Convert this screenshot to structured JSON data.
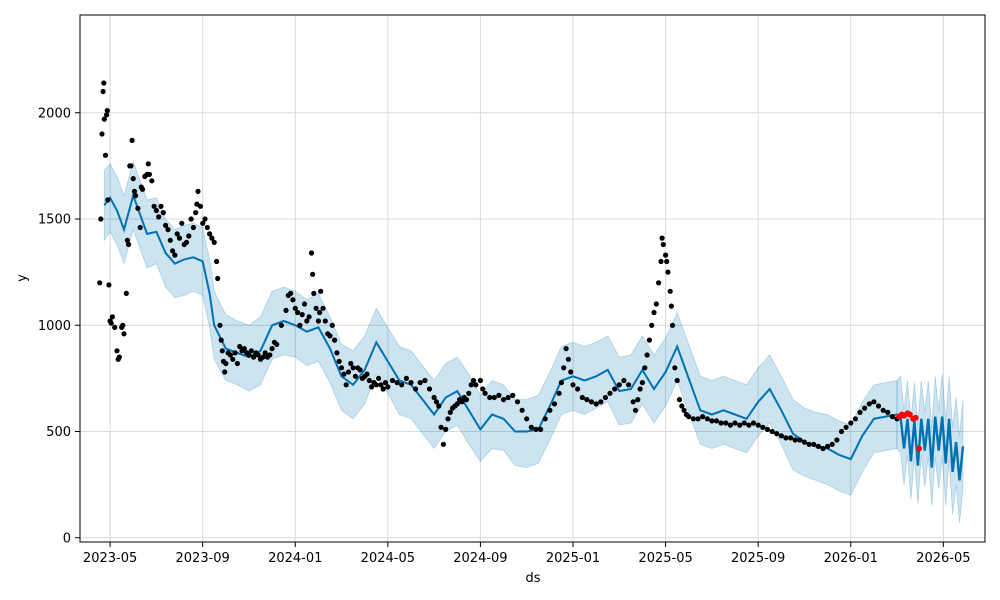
{
  "chart_data": {
    "type": "line",
    "title": "",
    "xlabel": "ds",
    "ylabel": "y",
    "grid": true,
    "x_range": [
      -1.3,
      37.8
    ],
    "y_range": [
      -20,
      2460
    ],
    "x_ticks": [
      {
        "m": 0,
        "label": "2023-05"
      },
      {
        "m": 4,
        "label": "2023-09"
      },
      {
        "m": 8,
        "label": "2024-01"
      },
      {
        "m": 12,
        "label": "2024-05"
      },
      {
        "m": 16,
        "label": "2024-09"
      },
      {
        "m": 20,
        "label": "2025-01"
      },
      {
        "m": 24,
        "label": "2025-05"
      },
      {
        "m": 28,
        "label": "2025-09"
      },
      {
        "m": 32,
        "label": "2026-01"
      },
      {
        "m": 36,
        "label": "2026-05"
      }
    ],
    "y_ticks": [
      {
        "v": 0,
        "label": "0"
      },
      {
        "v": 500,
        "label": "500"
      },
      {
        "v": 1000,
        "label": "1000"
      },
      {
        "v": 1500,
        "label": "1500"
      },
      {
        "v": 2000,
        "label": "2000"
      }
    ],
    "colors": {
      "forecast": "#0072B2",
      "band": "#0072B2",
      "observed": "#000000",
      "holdout": "#ff0000",
      "grid": "#d9d9d9"
    },
    "forecast": {
      "x": [
        -0.25,
        0.0,
        0.3,
        0.6,
        1.0,
        1.3,
        1.6,
        2.0,
        2.4,
        2.8,
        3.2,
        3.6,
        4.0,
        4.3,
        4.5,
        5.0,
        5.5,
        6.0,
        6.5,
        7.0,
        7.5,
        8.0,
        8.5,
        9.0,
        9.5,
        10.0,
        10.5,
        11.0,
        11.5,
        12.0,
        12.5,
        13.0,
        13.5,
        14.0,
        14.5,
        15.0,
        15.5,
        16.0,
        16.5,
        17.0,
        17.5,
        18.0,
        18.5,
        19.0,
        19.5,
        20.0,
        20.5,
        21.0,
        21.5,
        22.0,
        22.5,
        23.0,
        23.5,
        24.0,
        24.5,
        25.0,
        25.5,
        26.0,
        26.5,
        27.0,
        27.5,
        28.0,
        28.5,
        29.0,
        29.5,
        30.0,
        30.5,
        31.0,
        31.5,
        32.0,
        32.5,
        33.0,
        33.5,
        34.0
      ],
      "y": [
        1565,
        1600,
        1540,
        1450,
        1610,
        1520,
        1430,
        1440,
        1340,
        1290,
        1310,
        1320,
        1300,
        1150,
        1000,
        890,
        870,
        850,
        880,
        1000,
        1020,
        1000,
        970,
        990,
        890,
        760,
        720,
        790,
        920,
        830,
        740,
        720,
        650,
        580,
        660,
        690,
        600,
        510,
        580,
        560,
        500,
        500,
        510,
        620,
        740,
        760,
        740,
        760,
        790,
        690,
        700,
        790,
        700,
        780,
        900,
        750,
        600,
        580,
        600,
        580,
        560,
        640,
        700,
        600,
        490,
        450,
        430,
        420,
        390,
        370,
        480,
        560,
        570,
        580
      ],
      "lower": [
        1400,
        1440,
        1380,
        1290,
        1450,
        1360,
        1270,
        1290,
        1180,
        1130,
        1140,
        1160,
        1140,
        990,
        840,
        740,
        720,
        690,
        720,
        840,
        860,
        850,
        810,
        830,
        730,
        600,
        560,
        630,
        770,
        680,
        580,
        560,
        490,
        420,
        500,
        530,
        440,
        360,
        420,
        410,
        340,
        330,
        350,
        460,
        580,
        600,
        580,
        610,
        640,
        530,
        540,
        630,
        540,
        620,
        740,
        590,
        440,
        420,
        440,
        420,
        400,
        480,
        540,
        440,
        320,
        290,
        270,
        250,
        220,
        200,
        310,
        400,
        410,
        420
      ],
      "upper": [
        1730,
        1760,
        1700,
        1610,
        1770,
        1680,
        1590,
        1600,
        1500,
        1450,
        1470,
        1480,
        1460,
        1310,
        1160,
        1050,
        1020,
        1000,
        1040,
        1160,
        1180,
        1160,
        1120,
        1150,
        1040,
        910,
        880,
        950,
        1080,
        990,
        900,
        880,
        810,
        740,
        820,
        850,
        770,
        670,
        740,
        720,
        650,
        650,
        670,
        780,
        900,
        920,
        900,
        920,
        950,
        850,
        860,
        950,
        860,
        940,
        1060,
        910,
        760,
        740,
        760,
        740,
        720,
        800,
        860,
        760,
        650,
        610,
        590,
        580,
        550,
        530,
        640,
        720,
        730,
        740
      ]
    },
    "forecast_tail": {
      "x": [
        34.0,
        34.15,
        34.3,
        34.45,
        34.6,
        34.75,
        34.9,
        35.05,
        35.2,
        35.35,
        35.5,
        35.65,
        35.8,
        35.95,
        36.1,
        36.25,
        36.4,
        36.55,
        36.7,
        36.85
      ],
      "y": [
        580,
        570,
        420,
        560,
        360,
        550,
        340,
        560,
        410,
        560,
        330,
        570,
        410,
        570,
        350,
        560,
        310,
        450,
        270,
        430
      ],
      "lower": [
        420,
        400,
        250,
        390,
        180,
        380,
        160,
        390,
        240,
        380,
        150,
        380,
        230,
        380,
        150,
        370,
        110,
        250,
        70,
        230
      ],
      "upper": [
        740,
        760,
        600,
        740,
        550,
        730,
        530,
        740,
        590,
        740,
        510,
        760,
        600,
        770,
        550,
        760,
        520,
        660,
        480,
        650
      ]
    },
    "observed": [
      [
        -0.45,
        1200
      ],
      [
        -0.4,
        1500
      ],
      [
        -0.35,
        1900
      ],
      [
        -0.3,
        2100
      ],
      [
        -0.27,
        2140
      ],
      [
        -0.25,
        1970
      ],
      [
        -0.2,
        1800
      ],
      [
        -0.15,
        1990
      ],
      [
        -0.12,
        2010
      ],
      [
        -0.1,
        1590
      ],
      [
        -0.05,
        1190
      ],
      [
        0.0,
        1020
      ],
      [
        0.05,
        1010
      ],
      [
        0.1,
        1040
      ],
      [
        0.2,
        990
      ],
      [
        0.3,
        880
      ],
      [
        0.35,
        840
      ],
      [
        0.4,
        850
      ],
      [
        0.5,
        990
      ],
      [
        0.55,
        1000
      ],
      [
        0.6,
        960
      ],
      [
        0.7,
        1150
      ],
      [
        0.75,
        1400
      ],
      [
        0.8,
        1380
      ],
      [
        0.85,
        1750
      ],
      [
        0.9,
        1750
      ],
      [
        0.95,
        1870
      ],
      [
        1.0,
        1690
      ],
      [
        1.05,
        1630
      ],
      [
        1.1,
        1610
      ],
      [
        1.2,
        1550
      ],
      [
        1.3,
        1460
      ],
      [
        1.35,
        1650
      ],
      [
        1.4,
        1640
      ],
      [
        1.5,
        1700
      ],
      [
        1.6,
        1710
      ],
      [
        1.65,
        1760
      ],
      [
        1.7,
        1710
      ],
      [
        1.8,
        1680
      ],
      [
        1.9,
        1560
      ],
      [
        2.0,
        1540
      ],
      [
        2.1,
        1510
      ],
      [
        2.2,
        1560
      ],
      [
        2.3,
        1530
      ],
      [
        2.4,
        1470
      ],
      [
        2.5,
        1450
      ],
      [
        2.6,
        1400
      ],
      [
        2.7,
        1350
      ],
      [
        2.8,
        1330
      ],
      [
        2.9,
        1430
      ],
      [
        3.0,
        1410
      ],
      [
        3.1,
        1480
      ],
      [
        3.2,
        1380
      ],
      [
        3.3,
        1390
      ],
      [
        3.4,
        1420
      ],
      [
        3.5,
        1500
      ],
      [
        3.6,
        1460
      ],
      [
        3.7,
        1530
      ],
      [
        3.75,
        1570
      ],
      [
        3.8,
        1630
      ],
      [
        3.9,
        1560
      ],
      [
        4.0,
        1480
      ],
      [
        4.1,
        1500
      ],
      [
        4.2,
        1460
      ],
      [
        4.3,
        1430
      ],
      [
        4.4,
        1410
      ],
      [
        4.5,
        1390
      ],
      [
        4.6,
        1300
      ],
      [
        4.65,
        1220
      ],
      [
        4.75,
        1000
      ],
      [
        4.8,
        930
      ],
      [
        4.85,
        880
      ],
      [
        4.9,
        830
      ],
      [
        4.95,
        780
      ],
      [
        5.0,
        820
      ],
      [
        5.1,
        870
      ],
      [
        5.2,
        860
      ],
      [
        5.3,
        840
      ],
      [
        5.4,
        870
      ],
      [
        5.5,
        820
      ],
      [
        5.6,
        900
      ],
      [
        5.7,
        880
      ],
      [
        5.8,
        890
      ],
      [
        5.9,
        870
      ],
      [
        6.0,
        860
      ],
      [
        6.1,
        880
      ],
      [
        6.2,
        850
      ],
      [
        6.3,
        870
      ],
      [
        6.4,
        860
      ],
      [
        6.5,
        840
      ],
      [
        6.6,
        850
      ],
      [
        6.7,
        870
      ],
      [
        6.8,
        850
      ],
      [
        6.9,
        860
      ],
      [
        7.0,
        890
      ],
      [
        7.1,
        920
      ],
      [
        7.2,
        910
      ],
      [
        7.4,
        1000
      ],
      [
        7.6,
        1070
      ],
      [
        7.7,
        1140
      ],
      [
        7.8,
        1150
      ],
      [
        7.9,
        1120
      ],
      [
        8.0,
        1080
      ],
      [
        8.1,
        1060
      ],
      [
        8.2,
        1000
      ],
      [
        8.3,
        1050
      ],
      [
        8.4,
        1100
      ],
      [
        8.5,
        1020
      ],
      [
        8.6,
        1040
      ],
      [
        8.7,
        1340
      ],
      [
        8.75,
        1240
      ],
      [
        8.8,
        1150
      ],
      [
        8.9,
        1080
      ],
      [
        9.0,
        1020
      ],
      [
        9.05,
        1060
      ],
      [
        9.1,
        1160
      ],
      [
        9.2,
        1080
      ],
      [
        9.3,
        1020
      ],
      [
        9.4,
        960
      ],
      [
        9.5,
        950
      ],
      [
        9.6,
        1000
      ],
      [
        9.7,
        930
      ],
      [
        9.8,
        870
      ],
      [
        9.9,
        830
      ],
      [
        10.0,
        800
      ],
      [
        10.1,
        770
      ],
      [
        10.2,
        720
      ],
      [
        10.3,
        780
      ],
      [
        10.4,
        820
      ],
      [
        10.5,
        800
      ],
      [
        10.6,
        760
      ],
      [
        10.7,
        800
      ],
      [
        10.8,
        790
      ],
      [
        10.9,
        750
      ],
      [
        11.0,
        760
      ],
      [
        11.1,
        770
      ],
      [
        11.2,
        740
      ],
      [
        11.3,
        710
      ],
      [
        11.4,
        730
      ],
      [
        11.5,
        720
      ],
      [
        11.6,
        750
      ],
      [
        11.7,
        720
      ],
      [
        11.8,
        700
      ],
      [
        11.9,
        730
      ],
      [
        12.0,
        710
      ],
      [
        12.2,
        740
      ],
      [
        12.4,
        730
      ],
      [
        12.6,
        720
      ],
      [
        12.8,
        750
      ],
      [
        13.0,
        730
      ],
      [
        13.2,
        700
      ],
      [
        13.4,
        730
      ],
      [
        13.6,
        740
      ],
      [
        13.8,
        700
      ],
      [
        14.0,
        660
      ],
      [
        14.1,
        640
      ],
      [
        14.2,
        620
      ],
      [
        14.3,
        520
      ],
      [
        14.4,
        440
      ],
      [
        14.5,
        510
      ],
      [
        14.6,
        560
      ],
      [
        14.7,
        590
      ],
      [
        14.8,
        610
      ],
      [
        14.9,
        620
      ],
      [
        15.0,
        630
      ],
      [
        15.1,
        650
      ],
      [
        15.2,
        640
      ],
      [
        15.3,
        660
      ],
      [
        15.4,
        650
      ],
      [
        15.5,
        680
      ],
      [
        15.6,
        720
      ],
      [
        15.7,
        740
      ],
      [
        15.8,
        720
      ],
      [
        16.0,
        740
      ],
      [
        16.1,
        700
      ],
      [
        16.2,
        680
      ],
      [
        16.4,
        660
      ],
      [
        16.6,
        660
      ],
      [
        16.8,
        670
      ],
      [
        17.0,
        650
      ],
      [
        17.2,
        660
      ],
      [
        17.4,
        670
      ],
      [
        17.6,
        640
      ],
      [
        17.8,
        600
      ],
      [
        18.0,
        560
      ],
      [
        18.2,
        520
      ],
      [
        18.4,
        510
      ],
      [
        18.6,
        510
      ],
      [
        18.8,
        560
      ],
      [
        19.0,
        600
      ],
      [
        19.2,
        630
      ],
      [
        19.4,
        680
      ],
      [
        19.5,
        730
      ],
      [
        19.6,
        800
      ],
      [
        19.7,
        890
      ],
      [
        19.8,
        840
      ],
      [
        19.9,
        780
      ],
      [
        20.0,
        720
      ],
      [
        20.2,
        700
      ],
      [
        20.4,
        660
      ],
      [
        20.6,
        650
      ],
      [
        20.8,
        640
      ],
      [
        21.0,
        630
      ],
      [
        21.2,
        640
      ],
      [
        21.4,
        660
      ],
      [
        21.6,
        680
      ],
      [
        21.8,
        700
      ],
      [
        22.0,
        720
      ],
      [
        22.2,
        740
      ],
      [
        22.4,
        720
      ],
      [
        22.6,
        640
      ],
      [
        22.7,
        600
      ],
      [
        22.8,
        650
      ],
      [
        22.9,
        700
      ],
      [
        23.0,
        730
      ],
      [
        23.1,
        800
      ],
      [
        23.2,
        860
      ],
      [
        23.3,
        930
      ],
      [
        23.4,
        1000
      ],
      [
        23.5,
        1060
      ],
      [
        23.6,
        1100
      ],
      [
        23.7,
        1200
      ],
      [
        23.8,
        1300
      ],
      [
        23.85,
        1410
      ],
      [
        23.9,
        1380
      ],
      [
        24.0,
        1330
      ],
      [
        24.05,
        1300
      ],
      [
        24.1,
        1250
      ],
      [
        24.2,
        1160
      ],
      [
        24.25,
        1090
      ],
      [
        24.3,
        1000
      ],
      [
        24.4,
        800
      ],
      [
        24.5,
        740
      ],
      [
        24.6,
        650
      ],
      [
        24.7,
        620
      ],
      [
        24.8,
        600
      ],
      [
        24.9,
        580
      ],
      [
        25.0,
        570
      ],
      [
        25.2,
        560
      ],
      [
        25.4,
        560
      ],
      [
        25.6,
        570
      ],
      [
        25.8,
        560
      ],
      [
        26.0,
        550
      ],
      [
        26.2,
        550
      ],
      [
        26.4,
        540
      ],
      [
        26.6,
        540
      ],
      [
        26.8,
        530
      ],
      [
        27.0,
        540
      ],
      [
        27.2,
        530
      ],
      [
        27.4,
        540
      ],
      [
        27.6,
        530
      ],
      [
        27.8,
        540
      ],
      [
        28.0,
        530
      ],
      [
        28.2,
        520
      ],
      [
        28.4,
        510
      ],
      [
        28.6,
        500
      ],
      [
        28.8,
        490
      ],
      [
        29.0,
        480
      ],
      [
        29.2,
        470
      ],
      [
        29.4,
        470
      ],
      [
        29.6,
        460
      ],
      [
        29.8,
        460
      ],
      [
        30.0,
        450
      ],
      [
        30.2,
        440
      ],
      [
        30.4,
        440
      ],
      [
        30.6,
        430
      ],
      [
        30.8,
        420
      ],
      [
        31.0,
        430
      ],
      [
        31.2,
        440
      ],
      [
        31.4,
        460
      ],
      [
        31.6,
        500
      ],
      [
        31.8,
        520
      ],
      [
        32.0,
        540
      ],
      [
        32.2,
        560
      ],
      [
        32.4,
        590
      ],
      [
        32.6,
        610
      ],
      [
        32.8,
        630
      ],
      [
        33.0,
        640
      ],
      [
        33.2,
        620
      ],
      [
        33.4,
        600
      ],
      [
        33.6,
        590
      ],
      [
        33.8,
        570
      ],
      [
        34.0,
        560
      ]
    ],
    "holdout": [
      [
        34.1,
        570
      ],
      [
        34.2,
        580
      ],
      [
        34.3,
        575
      ],
      [
        34.45,
        585
      ],
      [
        34.55,
        580
      ],
      [
        34.7,
        560
      ],
      [
        34.8,
        565
      ],
      [
        34.95,
        420
      ]
    ]
  }
}
